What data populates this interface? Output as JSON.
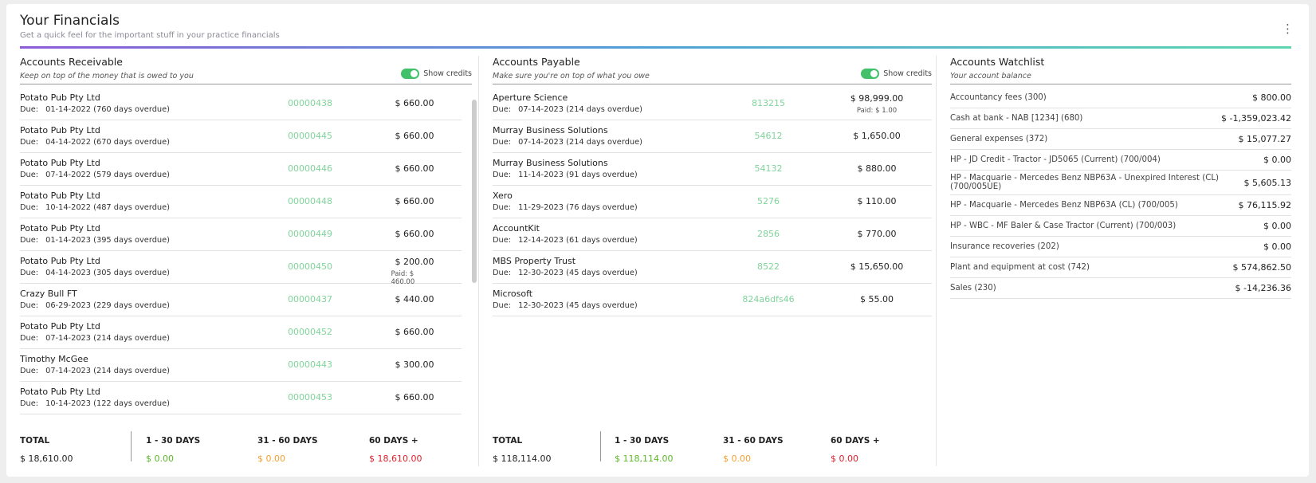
{
  "header": {
    "title": "Your Financials",
    "subtitle": "Get a quick feel for the important stuff in your practice financials"
  },
  "receivable": {
    "title": "Accounts Receivable",
    "subtitle": "Keep on top of the money that is owed to you",
    "toggle_label": "Show credits",
    "due_label": "Due:",
    "rows": [
      {
        "name": "Potato Pub Pty Ltd",
        "due": "01-14-2022 (760 days overdue)",
        "ref": "00000438",
        "amount": "$ 660.00"
      },
      {
        "name": "Potato Pub Pty Ltd",
        "due": "04-14-2022 (670 days overdue)",
        "ref": "00000445",
        "amount": "$ 660.00"
      },
      {
        "name": "Potato Pub Pty Ltd",
        "due": "07-14-2022 (579 days overdue)",
        "ref": "00000446",
        "amount": "$ 660.00"
      },
      {
        "name": "Potato Pub Pty Ltd",
        "due": "10-14-2022 (487 days overdue)",
        "ref": "00000448",
        "amount": "$ 660.00"
      },
      {
        "name": "Potato Pub Pty Ltd",
        "due": "01-14-2023 (395 days overdue)",
        "ref": "00000449",
        "amount": "$ 660.00"
      },
      {
        "name": "Potato Pub Pty Ltd",
        "due": "04-14-2023 (305 days overdue)",
        "ref": "00000450",
        "amount": "$ 200.00",
        "paid": "Paid:  $ 460.00"
      },
      {
        "name": "Crazy Bull FT",
        "due": "06-29-2023 (229 days overdue)",
        "ref": "00000437",
        "amount": "$ 440.00"
      },
      {
        "name": "Potato Pub Pty Ltd",
        "due": "07-14-2023 (214 days overdue)",
        "ref": "00000452",
        "amount": "$ 660.00"
      },
      {
        "name": "Timothy McGee",
        "due": "07-14-2023 (214 days overdue)",
        "ref": "00000443",
        "amount": "$ 300.00"
      },
      {
        "name": "Potato Pub Pty Ltd",
        "due": "10-14-2023 (122 days overdue)",
        "ref": "00000453",
        "amount": "$ 660.00"
      }
    ],
    "summary": [
      {
        "label": "TOTAL",
        "value": "$ 18,610.00"
      },
      {
        "label": "1 - 30 DAYS",
        "value": "$ 0.00"
      },
      {
        "label": "31 - 60 DAYS",
        "value": "$ 0.00"
      },
      {
        "label": "60 DAYS +",
        "value": "$ 18,610.00"
      }
    ]
  },
  "payable": {
    "title": "Accounts Payable",
    "subtitle": "Make sure you're on top of what you owe",
    "toggle_label": "Show credits",
    "due_label": "Due:",
    "rows": [
      {
        "name": "Aperture Science",
        "due": "07-14-2023 (214 days overdue)",
        "ref": "813215",
        "amount": "$ 98,999.00",
        "paid": "Paid:  $ 1.00"
      },
      {
        "name": "Murray Business Solutions",
        "due": "07-14-2023 (214 days overdue)",
        "ref": "54612",
        "amount": "$ 1,650.00"
      },
      {
        "name": "Murray Business Solutions",
        "due": "11-14-2023 (91 days overdue)",
        "ref": "54132",
        "amount": "$ 880.00"
      },
      {
        "name": "Xero",
        "due": "11-29-2023 (76 days overdue)",
        "ref": "5276",
        "amount": "$ 110.00"
      },
      {
        "name": "AccountKit",
        "due": "12-14-2023 (61 days overdue)",
        "ref": "2856",
        "amount": "$ 770.00"
      },
      {
        "name": "MBS Property Trust",
        "due": "12-30-2023 (45 days overdue)",
        "ref": "8522",
        "amount": "$ 15,650.00"
      },
      {
        "name": "Microsoft",
        "due": "12-30-2023 (45 days overdue)",
        "ref": "824a6dfs46",
        "amount": "$ 55.00"
      }
    ],
    "summary": [
      {
        "label": "TOTAL",
        "value": "$ 118,114.00"
      },
      {
        "label": "1 - 30 DAYS",
        "value": "$ 118,114.00"
      },
      {
        "label": "31 - 60 DAYS",
        "value": "$ 0.00"
      },
      {
        "label": "60 DAYS +",
        "value": "$ 0.00"
      }
    ]
  },
  "watchlist": {
    "title": "Accounts Watchlist",
    "subtitle": "Your account balance",
    "rows": [
      {
        "name": "Accountancy fees (300)",
        "amount": "$ 800.00"
      },
      {
        "name": "Cash at bank - NAB [1234] (680)",
        "amount": "$ -1,359,023.42"
      },
      {
        "name": "General expenses (372)",
        "amount": "$ 15,077.27"
      },
      {
        "name": "HP - JD Credit  - Tractor - JD5065 (Current) (700/004)",
        "amount": "$ 0.00"
      },
      {
        "name": "HP - Macquarie - Mercedes Benz NBP63A - Unexpired Interest (CL) (700/005UE)",
        "amount": "$ 5,605.13"
      },
      {
        "name": "HP - Macquarie - Mercedes Benz NBP63A (CL) (700/005)",
        "amount": "$ 76,115.92"
      },
      {
        "name": "HP - WBC - MF Baler & Case Tractor (Current) (700/003)",
        "amount": "$ 0.00"
      },
      {
        "name": "Insurance recoveries (202)",
        "amount": "$ 0.00"
      },
      {
        "name": "Plant and equipment at cost (742)",
        "amount": "$ 574,862.50"
      },
      {
        "name": "Sales (230)",
        "amount": "$ -14,236.36"
      }
    ]
  }
}
